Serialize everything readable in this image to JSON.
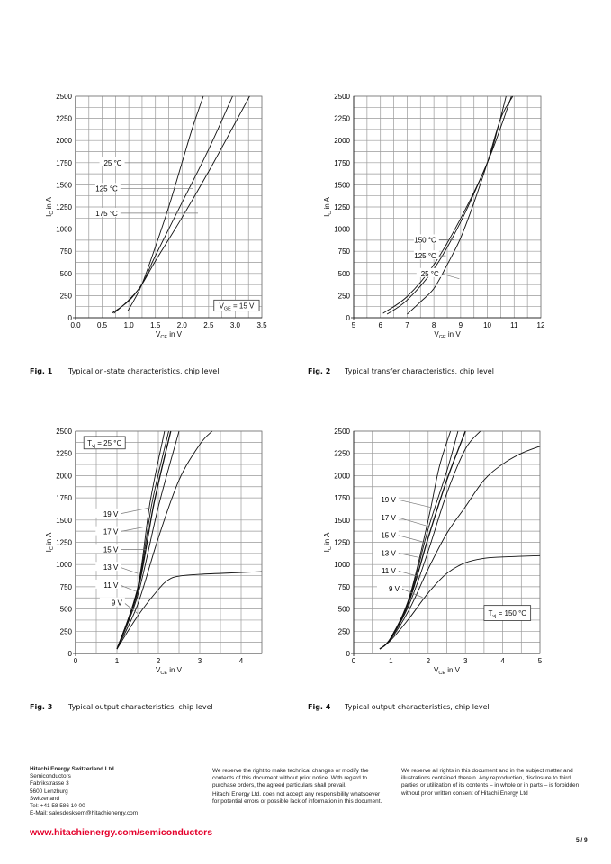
{
  "chart_data": [
    {
      "type": "line",
      "title": "Typical on-state characteristics, chip level",
      "xlabel": {
        "main": "V",
        "sub": "CE",
        "rest": " in V"
      },
      "ylabel": {
        "main": "I",
        "sub": "C",
        "rest": " in A"
      },
      "xlim": [
        0,
        3.5
      ],
      "ylim": [
        0,
        2500
      ],
      "xticks": [
        "0.0",
        "0.5",
        "1.0",
        "1.5",
        "2.0",
        "2.5",
        "3.0",
        "3.5"
      ],
      "yticks": [
        "0",
        "250",
        "500",
        "750",
        "1000",
        "1250",
        "1500",
        "1750",
        "2000",
        "2250",
        "2500"
      ],
      "grid": true,
      "legend_box": {
        "main": "V",
        "sub": "GE",
        "rest": " = 15 V"
      },
      "series": [
        {
          "name": "25 °C",
          "x": [
            0.98,
            1.1,
            1.25,
            1.5,
            1.75,
            2.0,
            2.2,
            2.4
          ],
          "y": [
            75,
            200,
            380,
            800,
            1250,
            1750,
            2150,
            2500
          ]
        },
        {
          "name": "125 °C",
          "x": [
            0.72,
            1.0,
            1.25,
            1.5,
            2.0,
            2.5,
            2.95
          ],
          "y": [
            50,
            200,
            380,
            700,
            1300,
            1900,
            2500
          ]
        },
        {
          "name": "175 °C",
          "x": [
            0.68,
            1.0,
            1.25,
            1.5,
            2.0,
            2.5,
            3.0,
            3.27
          ],
          "y": [
            50,
            190,
            380,
            640,
            1130,
            1650,
            2200,
            2500
          ]
        }
      ]
    },
    {
      "type": "line",
      "title": "Typical transfer characteristics, chip level",
      "xlabel": {
        "main": "V",
        "sub": "GE",
        "rest": " in V"
      },
      "ylabel": {
        "main": "I",
        "sub": "C",
        "rest": " in A"
      },
      "xlim": [
        5,
        12
      ],
      "ylim": [
        0,
        2500
      ],
      "xticks": [
        "5",
        "6",
        "7",
        "8",
        "9",
        "10",
        "11",
        "12"
      ],
      "yticks": [
        "0",
        "250",
        "500",
        "750",
        "1000",
        "1250",
        "1500",
        "1750",
        "2000",
        "2250",
        "2500"
      ],
      "grid": true,
      "series": [
        {
          "name": "150 °C",
          "x": [
            6.1,
            7,
            8,
            9,
            10,
            10.4,
            10.7
          ],
          "y": [
            50,
            240,
            600,
            1120,
            1750,
            2150,
            2500
          ]
        },
        {
          "name": "125 °C",
          "x": [
            6.25,
            7,
            8,
            9,
            10,
            10.5,
            10.9
          ],
          "y": [
            40,
            200,
            550,
            1080,
            1750,
            2150,
            2500
          ]
        },
        {
          "name": "25 °C",
          "x": [
            7.0,
            7.5,
            8,
            8.5,
            9,
            9.5,
            10,
            10.5,
            10.95
          ],
          "y": [
            40,
            180,
            330,
            600,
            900,
            1300,
            1750,
            2250,
            2500
          ]
        }
      ]
    },
    {
      "type": "line",
      "title": "Typical output characteristics, chip level",
      "xlabel": {
        "main": "V",
        "sub": "CE",
        "rest": " in V"
      },
      "ylabel": {
        "main": "I",
        "sub": "C",
        "rest": " in A"
      },
      "xlim": [
        0,
        4.5
      ],
      "ylim": [
        0,
        2500
      ],
      "xticks": [
        "0",
        "1",
        "2",
        "3",
        "4"
      ],
      "yticks": [
        "0",
        "250",
        "500",
        "750",
        "1000",
        "1250",
        "1500",
        "1750",
        "2000",
        "2250",
        "2500"
      ],
      "grid": true,
      "legend_box": {
        "main": "T",
        "sub": "vj",
        "rest": " = 25 °C"
      },
      "series": [
        {
          "name": "19 V",
          "x": [
            1,
            1.5,
            1.8,
            2.15
          ],
          "y": [
            50,
            740,
            1700,
            2500
          ]
        },
        {
          "name": "17 V",
          "x": [
            1,
            1.5,
            1.85,
            2.25
          ],
          "y": [
            50,
            720,
            1700,
            2500
          ]
        },
        {
          "name": "15 V",
          "x": [
            1,
            1.5,
            1.9,
            2.3
          ],
          "y": [
            50,
            700,
            1700,
            2500
          ]
        },
        {
          "name": "13 V",
          "x": [
            1,
            1.5,
            2,
            2.5
          ],
          "y": [
            50,
            650,
            1650,
            2500
          ]
        },
        {
          "name": "11 V",
          "x": [
            1,
            1.5,
            2,
            2.5,
            3,
            3.3
          ],
          "y": [
            50,
            550,
            1300,
            1950,
            2350,
            2500
          ]
        },
        {
          "name": "9 V",
          "x": [
            1,
            1.5,
            2,
            2.25,
            2.5,
            3,
            4,
            4.5
          ],
          "y": [
            50,
            420,
            720,
            830,
            870,
            890,
            910,
            920
          ]
        }
      ]
    },
    {
      "type": "line",
      "title": "Typical output characteristics, chip level",
      "xlabel": {
        "main": "V",
        "sub": "CE",
        "rest": " in V"
      },
      "ylabel": {
        "main": "I",
        "sub": "C",
        "rest": " in A"
      },
      "xlim": [
        0,
        5
      ],
      "ylim": [
        0,
        2500
      ],
      "xticks": [
        "0",
        "1",
        "2",
        "3",
        "4",
        "5"
      ],
      "yticks": [
        "0",
        "250",
        "500",
        "750",
        "1000",
        "1250",
        "1500",
        "1750",
        "2000",
        "2250",
        "2500"
      ],
      "grid": true,
      "legend_box": {
        "main": "T",
        "sub": "vj",
        "rest": " = 150 °C"
      },
      "series": [
        {
          "name": "19 V",
          "x": [
            0.7,
            1,
            1.5,
            2,
            2.3,
            2.6
          ],
          "y": [
            50,
            180,
            640,
            1500,
            2100,
            2500
          ]
        },
        {
          "name": "17 V",
          "x": [
            0.7,
            1,
            1.5,
            2,
            2.5,
            2.8
          ],
          "y": [
            50,
            175,
            620,
            1400,
            2050,
            2500
          ]
        },
        {
          "name": "15 V",
          "x": [
            0.7,
            1,
            1.5,
            2,
            2.5,
            3
          ],
          "y": [
            50,
            170,
            600,
            1300,
            1950,
            2500
          ]
        },
        {
          "name": "13 V",
          "x": [
            0.7,
            1,
            1.5,
            2,
            2.5,
            3,
            3.4
          ],
          "y": [
            50,
            170,
            560,
            1150,
            1800,
            2300,
            2500
          ]
        },
        {
          "name": "11 V",
          "x": [
            0.7,
            1,
            1.5,
            2,
            2.5,
            3,
            3.5,
            4,
            4.5,
            5
          ],
          "y": [
            50,
            160,
            500,
            950,
            1350,
            1650,
            1950,
            2130,
            2250,
            2330
          ]
        },
        {
          "name": "9 V",
          "x": [
            0.7,
            1,
            1.5,
            2,
            2.5,
            3,
            3.5,
            4,
            5
          ],
          "y": [
            50,
            150,
            400,
            680,
            900,
            1020,
            1070,
            1085,
            1100
          ]
        }
      ]
    }
  ],
  "captions": [
    {
      "fig": "Fig. 1",
      "text": "Typical on-state characteristics, chip level"
    },
    {
      "fig": "Fig. 2",
      "text": "Typical transfer characteristics, chip level"
    },
    {
      "fig": "Fig. 3",
      "text": "Typical output characteristics, chip level"
    },
    {
      "fig": "Fig. 4",
      "text": "Typical output characteristics, chip level"
    }
  ],
  "footer": {
    "company": "Hitachi Energy Switzerland Ltd",
    "address": [
      "Semiconductors",
      "Fabrikstrasse 3",
      "5600 Lenzburg",
      "Switzerland",
      "Tel: +41 58 586 10 00",
      "E-Mail: salesdesksem@hitachienergy.com"
    ],
    "disclaimer1": "We reserve the right to make technical changes or modify the contents of this document without prior notice. With regard to purchase orders, the agreed particulars shall prevail.",
    "disclaimer2": "Hitachi Energy Ltd. does not accept any responsibility whatsoever for potential errors or possible lack of information in this document.",
    "rights": "We reserve all rights in this document and in the subject matter and illustrations contained therein. Any reproduction, disclosure to third parties or utilization of its contents – in whole or in parts – is forbidden without prior written consent of Hitachi Energy Ltd",
    "url": "www.hitachienergy.com/semiconductors",
    "page": "5 / 9"
  },
  "colors": {
    "url": "#e4002b",
    "grid": "#9a9a9a",
    "curve": "#111111"
  }
}
